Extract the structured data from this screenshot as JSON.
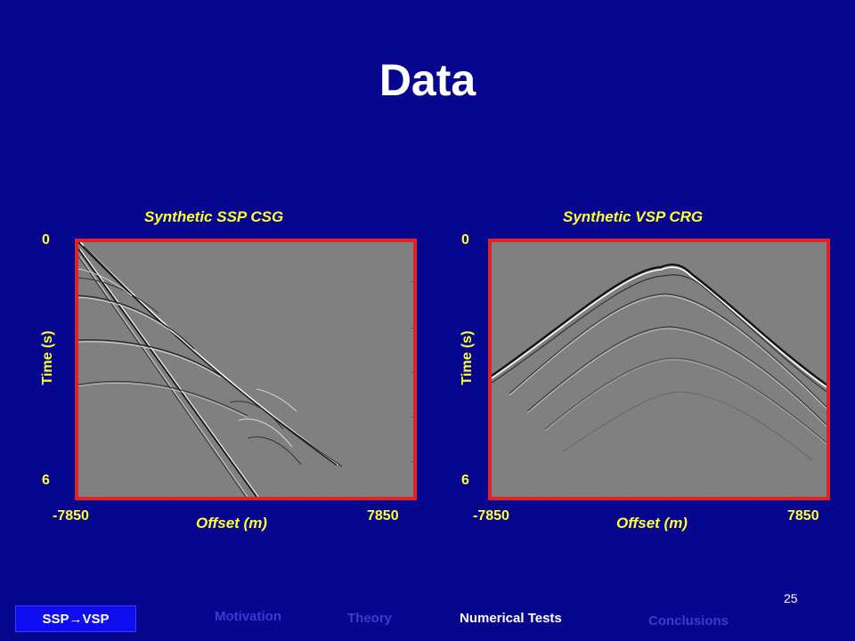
{
  "slide": {
    "title": "Data",
    "page_number": "25"
  },
  "panels": [
    {
      "title": "Synthetic SSP CSG",
      "y_top": "0",
      "y_bottom": "6",
      "y_label": "Time (s)",
      "x_left": "-7850",
      "x_right": "7850",
      "x_label": "Offset (m)"
    },
    {
      "title": "Synthetic VSP CRG",
      "y_top": "0",
      "y_bottom": "6",
      "y_label": "Time (s)",
      "x_left": "-7850",
      "x_right": "7850",
      "x_label": "Offset (m)"
    }
  ],
  "nav": {
    "active": "SSP→VSP",
    "items": [
      "Motivation",
      "Theory",
      "Numerical Tests",
      "Conclusions"
    ]
  },
  "colors": {
    "background": "#06068f",
    "label": "#ffff33",
    "frame": "#e02424",
    "nav_active": "#0d0df0"
  }
}
